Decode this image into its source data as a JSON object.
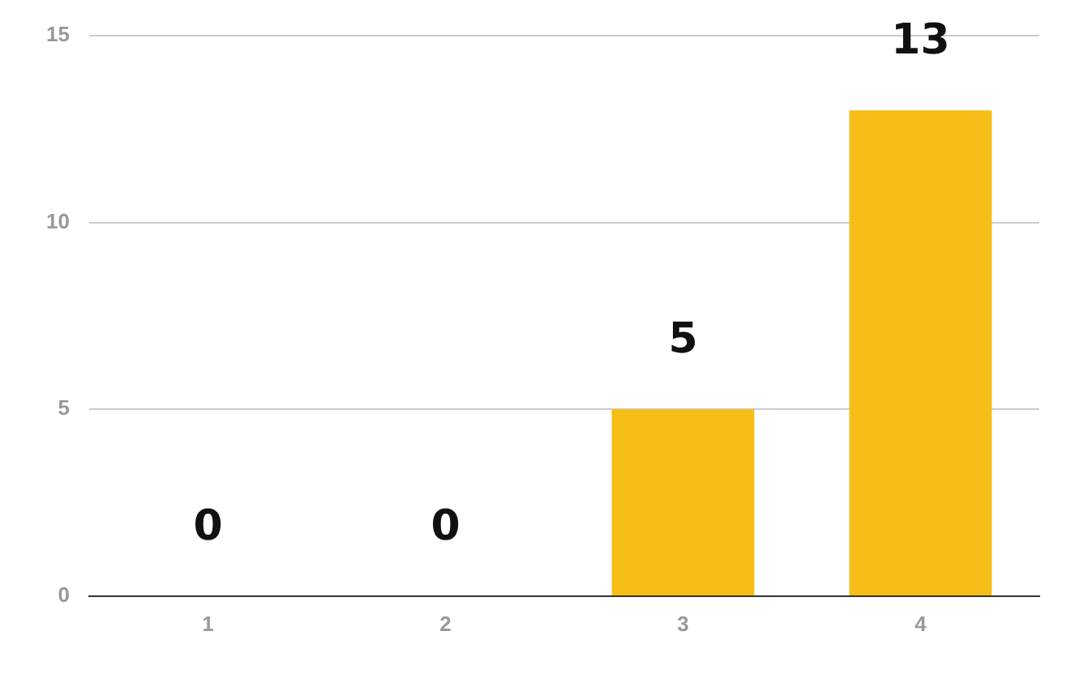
{
  "chart_data": {
    "type": "bar",
    "categories": [
      "1",
      "2",
      "3",
      "4"
    ],
    "values": [
      0,
      0,
      5,
      13
    ],
    "color": "#f6bd16",
    "ylim": [
      0,
      15
    ],
    "yticks": [
      0,
      5,
      10,
      15
    ],
    "grid": "y",
    "legend": false,
    "data_labels": true
  }
}
